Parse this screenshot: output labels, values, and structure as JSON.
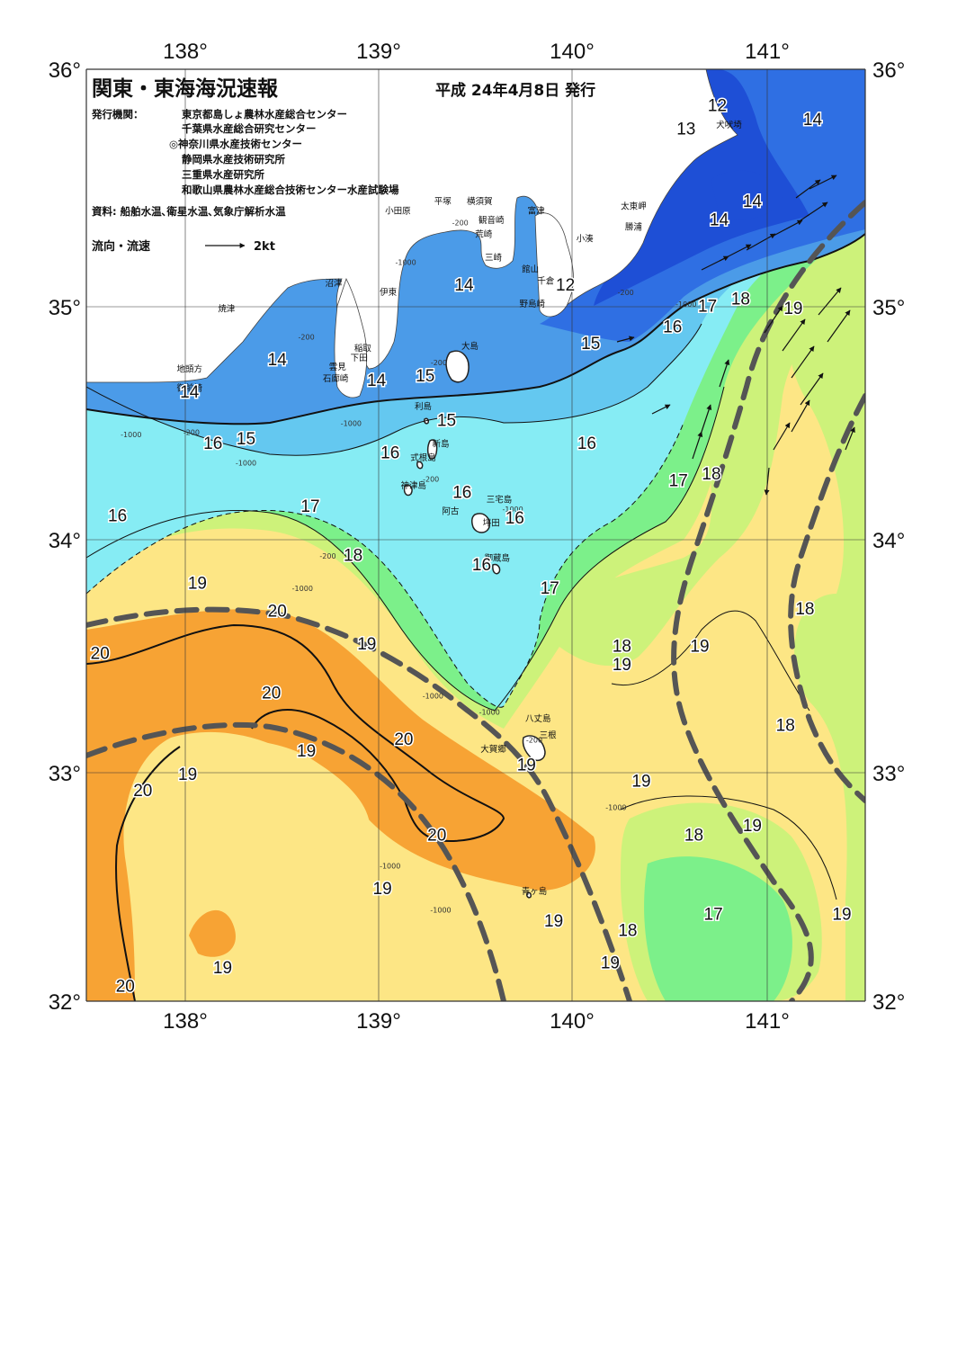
{
  "header": {
    "title": "関東・東海海況速報",
    "date": "平成 24年4月8日 発行",
    "issuer_label": "発行機関：",
    "issuers": [
      "東京都島しょ農林水産総合センター",
      "千葉県水産総合研究センター",
      "◎神奈川県水産技術センター",
      "静岡県水産技術研究所",
      "三重県水産研究所",
      "和歌山県農林水産総合技術センター水産試験場"
    ],
    "sources": "資料: 船舶水温､衛星水温､気象庁解析水温"
  },
  "legend": {
    "label": "流向・流速",
    "scale_label": "2kt"
  },
  "axes": {
    "lon_labels": [
      "138°",
      "139°",
      "140°",
      "141°"
    ],
    "lat_labels": [
      "36°",
      "35°",
      "34°",
      "33°",
      "32°"
    ],
    "lon_range": [
      137.5,
      141.5
    ],
    "lat_range": [
      32,
      36
    ]
  },
  "colors": {
    "t12": "#1e4fd6",
    "t13": "#2f6fe3",
    "t14": "#4b9be8",
    "t15": "#64c8f0",
    "t16": "#86ecf4",
    "t17": "#7cf08a",
    "t18": "#cdf27a",
    "t19": "#fde685",
    "t20": "#f7a334",
    "land": "#ffffff",
    "kuroshio": "#555555"
  },
  "isotherm_labels": [
    {
      "text": "12",
      "lon": 140.74,
      "lat": 35.82
    },
    {
      "text": "13",
      "lon": 140.58,
      "lat": 35.72
    },
    {
      "text": "14",
      "lon": 141.23,
      "lat": 35.76
    },
    {
      "text": "14",
      "lon": 140.92,
      "lat": 35.41
    },
    {
      "text": "14",
      "lon": 140.75,
      "lat": 35.33
    },
    {
      "text": "14",
      "lon": 139.44,
      "lat": 35.05
    },
    {
      "text": "12",
      "lon": 139.96,
      "lat": 35.05
    },
    {
      "text": "17",
      "lon": 140.69,
      "lat": 34.96
    },
    {
      "text": "18",
      "lon": 140.86,
      "lat": 34.99
    },
    {
      "text": "19",
      "lon": 141.13,
      "lat": 34.95
    },
    {
      "text": "16",
      "lon": 140.51,
      "lat": 34.87
    },
    {
      "text": "15",
      "lon": 140.09,
      "lat": 34.8
    },
    {
      "text": "14",
      "lon": 138.48,
      "lat": 34.73
    },
    {
      "text": "14",
      "lon": 138.99,
      "lat": 34.64
    },
    {
      "text": "15",
      "lon": 139.24,
      "lat": 34.66
    },
    {
      "text": "14",
      "lon": 138.03,
      "lat": 34.59
    },
    {
      "text": "15",
      "lon": 139.35,
      "lat": 34.47
    },
    {
      "text": "15",
      "lon": 138.32,
      "lat": 34.39
    },
    {
      "text": "16",
      "lon": 138.15,
      "lat": 34.37
    },
    {
      "text": "16",
      "lon": 139.06,
      "lat": 34.33
    },
    {
      "text": "16",
      "lon": 140.07,
      "lat": 34.37
    },
    {
      "text": "16",
      "lon": 139.43,
      "lat": 34.16
    },
    {
      "text": "17",
      "lon": 140.54,
      "lat": 34.21
    },
    {
      "text": "18",
      "lon": 140.71,
      "lat": 34.24
    },
    {
      "text": "16",
      "lon": 137.66,
      "lat": 34.06
    },
    {
      "text": "17",
      "lon": 138.65,
      "lat": 34.1
    },
    {
      "text": "16",
      "lon": 139.7,
      "lat": 34.05
    },
    {
      "text": "18",
      "lon": 138.87,
      "lat": 33.89
    },
    {
      "text": "16",
      "lon": 139.53,
      "lat": 33.85
    },
    {
      "text": "19",
      "lon": 138.07,
      "lat": 33.77
    },
    {
      "text": "17",
      "lon": 139.88,
      "lat": 33.75
    },
    {
      "text": "18",
      "lon": 141.19,
      "lat": 33.66
    },
    {
      "text": "20",
      "lon": 138.48,
      "lat": 33.65
    },
    {
      "text": "20",
      "lon": 137.57,
      "lat": 33.47
    },
    {
      "text": "19",
      "lon": 138.94,
      "lat": 33.51
    },
    {
      "text": "18",
      "lon": 140.25,
      "lat": 33.5
    },
    {
      "text": "19",
      "lon": 140.65,
      "lat": 33.5
    },
    {
      "text": "19",
      "lon": 140.25,
      "lat": 33.42
    },
    {
      "text": "20",
      "lon": 138.45,
      "lat": 33.3
    },
    {
      "text": "20",
      "lon": 139.13,
      "lat": 33.1
    },
    {
      "text": "18",
      "lon": 141.09,
      "lat": 33.16
    },
    {
      "text": "19",
      "lon": 138.63,
      "lat": 33.05
    },
    {
      "text": "19",
      "lon": 139.76,
      "lat": 32.99
    },
    {
      "text": "19",
      "lon": 138.02,
      "lat": 32.95
    },
    {
      "text": "19",
      "lon": 140.35,
      "lat": 32.92
    },
    {
      "text": "20",
      "lon": 137.79,
      "lat": 32.88
    },
    {
      "text": "19",
      "lon": 140.92,
      "lat": 32.73
    },
    {
      "text": "18",
      "lon": 140.62,
      "lat": 32.69
    },
    {
      "text": "20",
      "lon": 139.3,
      "lat": 32.69
    },
    {
      "text": "19",
      "lon": 139.02,
      "lat": 32.46
    },
    {
      "text": "17",
      "lon": 140.72,
      "lat": 32.35
    },
    {
      "text": "19",
      "lon": 141.38,
      "lat": 32.35
    },
    {
      "text": "19",
      "lon": 139.9,
      "lat": 32.32
    },
    {
      "text": "18",
      "lon": 140.28,
      "lat": 32.28
    },
    {
      "text": "19",
      "lon": 138.2,
      "lat": 32.12
    },
    {
      "text": "19",
      "lon": 140.19,
      "lat": 32.14
    },
    {
      "text": "20",
      "lon": 137.7,
      "lat": 32.04
    }
  ],
  "place_labels": [
    {
      "text": "犬吠埼",
      "lon": 140.8,
      "lat": 35.75
    },
    {
      "text": "太東岬",
      "lon": 140.31,
      "lat": 35.4
    },
    {
      "text": "勝浦",
      "lon": 140.31,
      "lat": 35.31
    },
    {
      "text": "小湊",
      "lon": 140.06,
      "lat": 35.26
    },
    {
      "text": "館山",
      "lon": 139.78,
      "lat": 35.13
    },
    {
      "text": "千倉",
      "lon": 139.86,
      "lat": 35.08
    },
    {
      "text": "野島崎",
      "lon": 139.79,
      "lat": 34.98
    },
    {
      "text": "富津",
      "lon": 139.81,
      "lat": 35.38
    },
    {
      "text": "横須賀",
      "lon": 139.52,
      "lat": 35.42
    },
    {
      "text": "観音崎",
      "lon": 139.58,
      "lat": 35.34
    },
    {
      "text": "荒崎",
      "lon": 139.54,
      "lat": 35.28
    },
    {
      "text": "三崎",
      "lon": 139.59,
      "lat": 35.18
    },
    {
      "text": "平塚",
      "lon": 139.33,
      "lat": 35.42
    },
    {
      "text": "小田原",
      "lon": 139.1,
      "lat": 35.38
    },
    {
      "text": "沼津",
      "lon": 138.77,
      "lat": 35.07
    },
    {
      "text": "伊東",
      "lon": 139.05,
      "lat": 35.03
    },
    {
      "text": "焼津",
      "lon": 138.22,
      "lat": 34.96
    },
    {
      "text": "稲取",
      "lon": 138.92,
      "lat": 34.79
    },
    {
      "text": "下田",
      "lon": 138.9,
      "lat": 34.75
    },
    {
      "text": "雲見",
      "lon": 138.79,
      "lat": 34.71
    },
    {
      "text": "石廊崎",
      "lon": 138.78,
      "lat": 34.66
    },
    {
      "text": "地頭方",
      "lon": 138.03,
      "lat": 34.7
    },
    {
      "text": "御前崎",
      "lon": 138.03,
      "lat": 34.62
    },
    {
      "text": "大島",
      "lon": 139.47,
      "lat": 34.8
    },
    {
      "text": "利島",
      "lon": 139.23,
      "lat": 34.54
    },
    {
      "text": "新島",
      "lon": 139.32,
      "lat": 34.38
    },
    {
      "text": "式根島",
      "lon": 139.23,
      "lat": 34.32
    },
    {
      "text": "神津島",
      "lon": 139.18,
      "lat": 34.2
    },
    {
      "text": "三宅島",
      "lon": 139.62,
      "lat": 34.14
    },
    {
      "text": "阿古",
      "lon": 139.37,
      "lat": 34.09
    },
    {
      "text": "坪田",
      "lon": 139.58,
      "lat": 34.04
    },
    {
      "text": "御蔵島",
      "lon": 139.61,
      "lat": 33.89
    },
    {
      "text": "八丈島",
      "lon": 139.82,
      "lat": 33.2
    },
    {
      "text": "三根",
      "lon": 139.87,
      "lat": 33.13
    },
    {
      "text": "大賀郷",
      "lon": 139.59,
      "lat": 33.07
    },
    {
      "text": "青ヶ島",
      "lon": 139.8,
      "lat": 32.46
    }
  ],
  "depth_labels": [
    {
      "text": "-200",
      "lon": 139.42,
      "lat": 35.33
    },
    {
      "text": "-1000",
      "lon": 139.14,
      "lat": 35.16
    },
    {
      "text": "-200",
      "lon": 140.27,
      "lat": 35.03
    },
    {
      "text": "-1000",
      "lon": 140.58,
      "lat": 34.98
    },
    {
      "text": "-200",
      "lon": 138.63,
      "lat": 34.84
    },
    {
      "text": "-200",
      "lon": 139.31,
      "lat": 34.73
    },
    {
      "text": "-1000",
      "lon": 138.86,
      "lat": 34.47
    },
    {
      "text": "-1000",
      "lon": 137.73,
      "lat": 34.42
    },
    {
      "text": "-200",
      "lon": 138.04,
      "lat": 34.43
    },
    {
      "text": "-1000",
      "lon": 138.32,
      "lat": 34.3
    },
    {
      "text": "-200",
      "lon": 139.27,
      "lat": 34.23
    },
    {
      "text": "-1000",
      "lon": 139.69,
      "lat": 34.1
    },
    {
      "text": "-200",
      "lon": 138.74,
      "lat": 33.9
    },
    {
      "text": "-1000",
      "lon": 138.61,
      "lat": 33.76
    },
    {
      "text": "-1000",
      "lon": 139.28,
      "lat": 33.3
    },
    {
      "text": "-1000",
      "lon": 139.57,
      "lat": 33.23
    },
    {
      "text": "-200",
      "lon": 139.8,
      "lat": 33.11
    },
    {
      "text": "-1000",
      "lon": 140.22,
      "lat": 32.82
    },
    {
      "text": "-1000",
      "lon": 139.06,
      "lat": 32.57
    },
    {
      "text": "-1000",
      "lon": 139.32,
      "lat": 32.38
    }
  ]
}
